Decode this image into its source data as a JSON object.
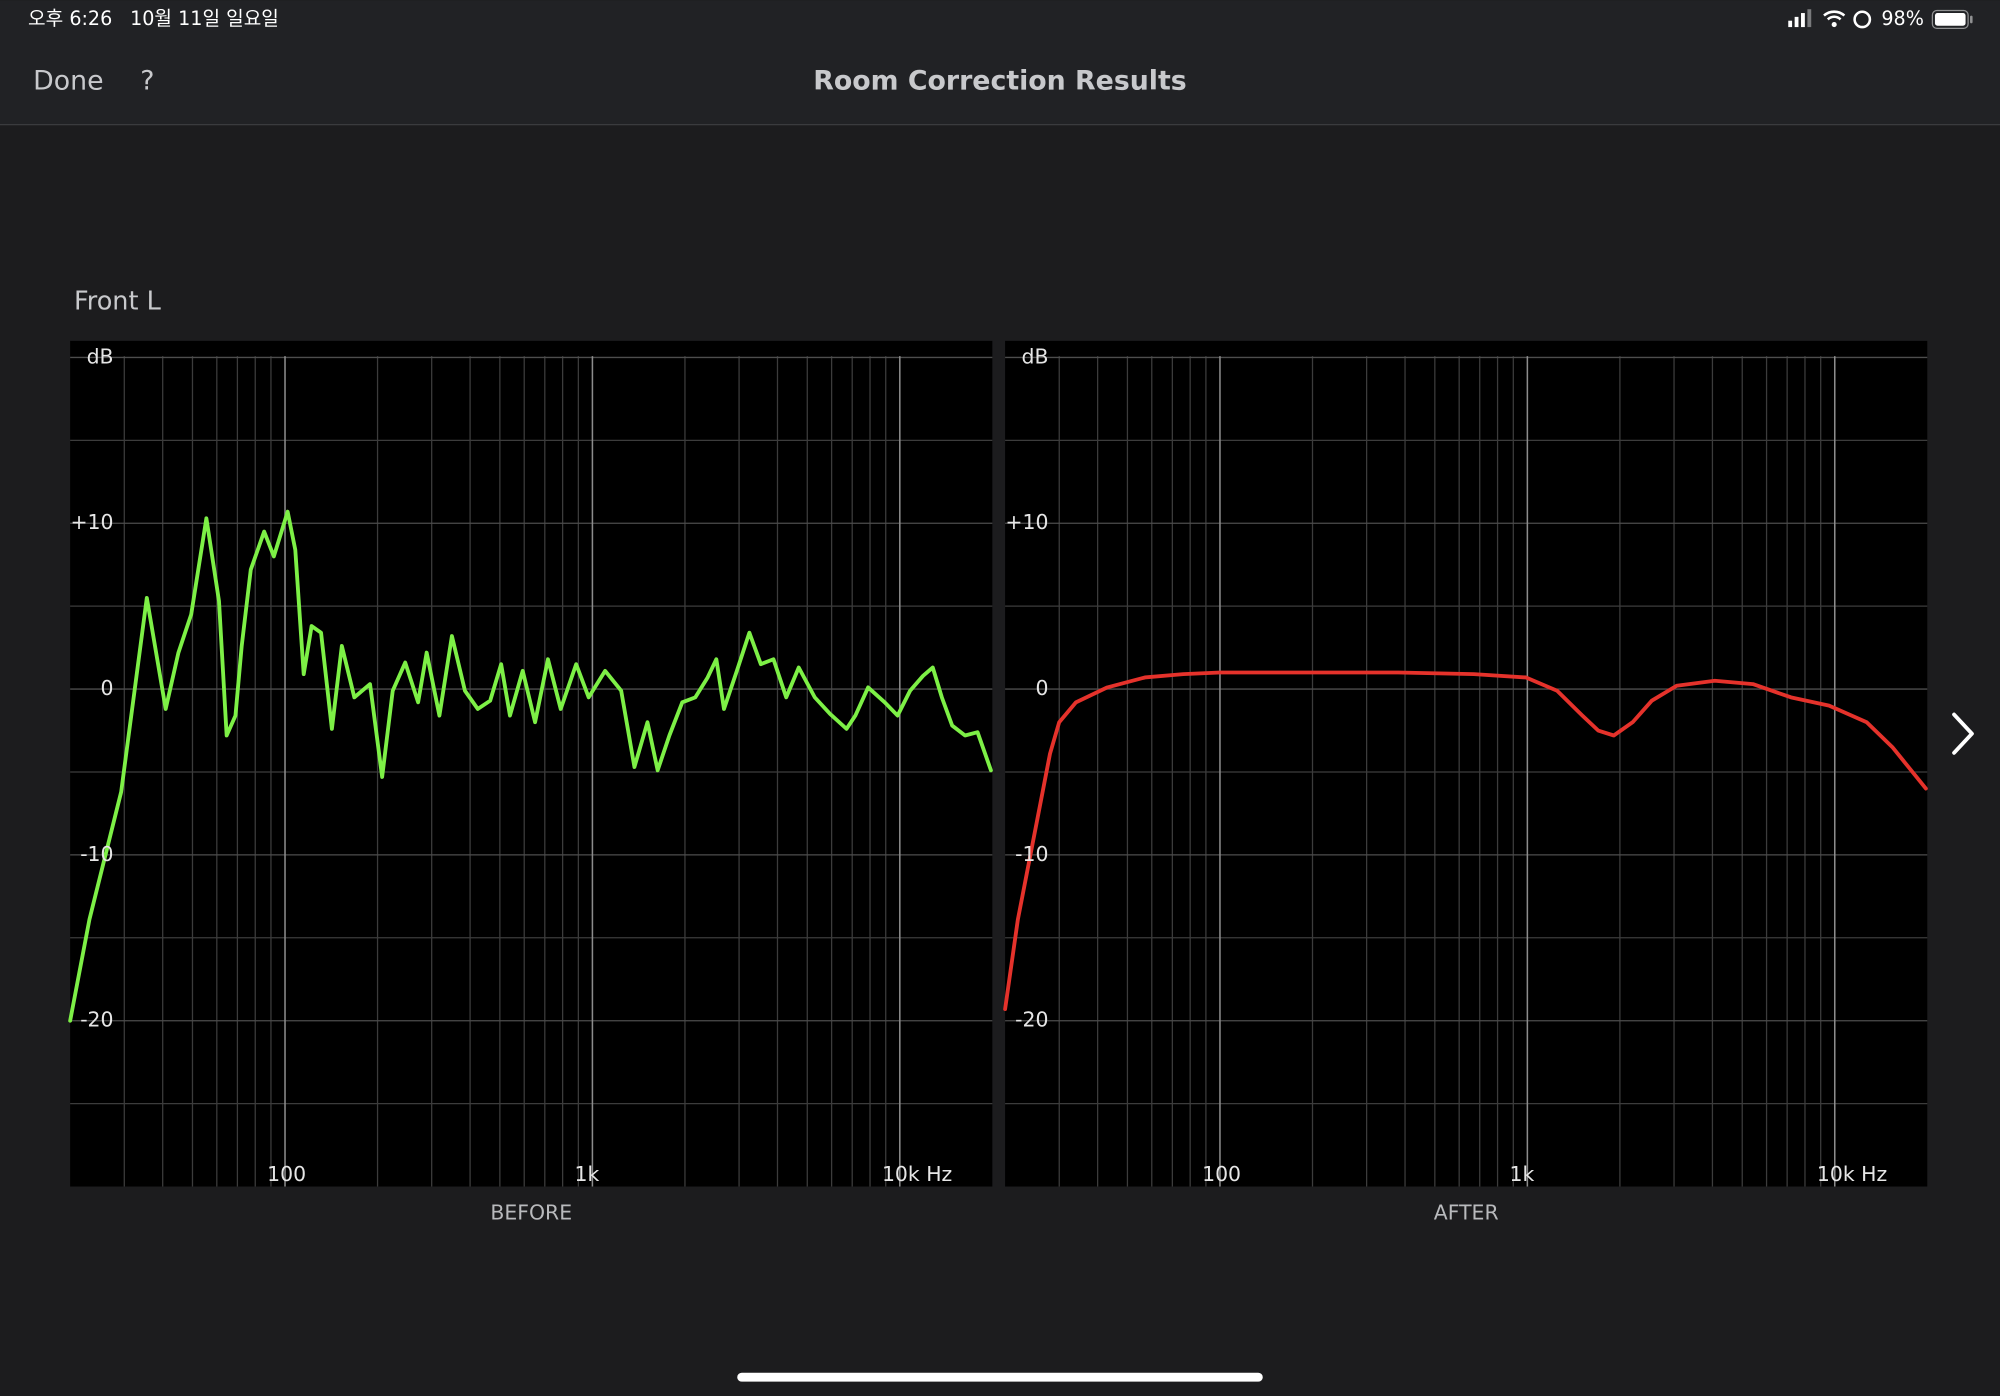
{
  "status_bar": {
    "time": "오후 6:26",
    "date": "10월 11일 일요일",
    "battery": "98%"
  },
  "nav": {
    "done": "Done",
    "help": "?",
    "title": "Room Correction Results"
  },
  "channel": "Front L",
  "chart_data": [
    {
      "type": "line",
      "caption": "BEFORE",
      "color": "#7df046",
      "log_x": true,
      "xlim": [
        20,
        20000
      ],
      "ylim": [
        -30,
        21
      ],
      "xticks": [
        100,
        {
          "value": 1000,
          "label": "1k"
        },
        {
          "value": 10000,
          "label": "10k Hz"
        }
      ],
      "minor_xticks": [
        30,
        40,
        50,
        60,
        70,
        80,
        90,
        200,
        300,
        400,
        500,
        600,
        700,
        800,
        900,
        2000,
        3000,
        4000,
        5000,
        6000,
        7000,
        8000,
        9000
      ],
      "yticks": [
        {
          "value": 20,
          "label": "dB"
        },
        {
          "value": 10,
          "label": "+10"
        },
        0,
        -10,
        -20
      ],
      "minor_yticks": [
        15,
        5,
        -5,
        -15,
        -25
      ],
      "x": [
        20,
        23.1,
        29.3,
        32.2,
        35.5,
        40.9,
        45,
        49.5,
        55.5,
        61,
        64.6,
        69,
        72.3,
        77.4,
        85.5,
        92,
        102,
        108,
        115,
        122,
        131,
        142,
        153,
        168,
        189,
        207,
        224,
        246,
        271,
        289,
        318,
        349,
        385,
        424,
        465,
        505,
        539,
        593,
        651,
        717,
        789,
        885,
        972,
        1100,
        1240,
        1370,
        1510,
        1630,
        1780,
        1960,
        2160,
        2370,
        2530,
        2680,
        2950,
        3240,
        3530,
        3880,
        4270,
        4690,
        5290,
        5930,
        6710,
        7170,
        7890,
        8930,
        9830,
        10800,
        11900,
        12800,
        13700,
        14800,
        16300,
        17900,
        19800
      ],
      "values": [
        -20,
        -13.9,
        -6.2,
        -0.5,
        5.5,
        -1.2,
        2.2,
        4.5,
        10.3,
        5.3,
        -2.8,
        -1.6,
        2.6,
        7.2,
        9.5,
        8,
        10.7,
        8.4,
        0.9,
        3.8,
        3.4,
        -2.4,
        2.6,
        -0.5,
        0.3,
        -5.3,
        -0.1,
        1.6,
        -0.8,
        2.2,
        -1.6,
        3.2,
        -0.1,
        -1.2,
        -0.7,
        1.5,
        -1.6,
        1.1,
        -2,
        1.8,
        -1.2,
        1.5,
        -0.5,
        1.1,
        -0.1,
        -4.7,
        -2,
        -4.9,
        -2.8,
        -0.8,
        -0.5,
        0.7,
        1.8,
        -1.2,
        1.1,
        3.4,
        1.5,
        1.8,
        -0.5,
        1.3,
        -0.5,
        -1.5,
        -2.4,
        -1.6,
        0.1,
        -0.8,
        -1.6,
        -0.1,
        0.8,
        1.3,
        -0.5,
        -2.2,
        -2.8,
        -2.6,
        -4.9
      ]
    },
    {
      "type": "line",
      "caption": "AFTER",
      "color": "#e5322b",
      "log_x": true,
      "xlim": [
        20,
        20000
      ],
      "ylim": [
        -30,
        21
      ],
      "xticks": [
        100,
        {
          "value": 1000,
          "label": "1k"
        },
        {
          "value": 10000,
          "label": "10k Hz"
        }
      ],
      "minor_xticks": [
        30,
        40,
        50,
        60,
        70,
        80,
        90,
        200,
        300,
        400,
        500,
        600,
        700,
        800,
        900,
        2000,
        3000,
        4000,
        5000,
        6000,
        7000,
        8000,
        9000
      ],
      "yticks": [
        {
          "value": 20,
          "label": "dB"
        },
        {
          "value": 10,
          "label": "+10"
        },
        0,
        -10,
        -20
      ],
      "minor_yticks": [
        15,
        5,
        -5,
        -15,
        -25
      ],
      "x": [
        20,
        22,
        25.5,
        28,
        30,
        34,
        43,
        57,
        76,
        100,
        145,
        380,
        670,
        990,
        1250,
        1510,
        1700,
        1910,
        2200,
        2540,
        3060,
        4070,
        5420,
        7200,
        9580,
        12700,
        15400,
        19800
      ],
      "values": [
        -19.3,
        -13.9,
        -7.8,
        -3.9,
        -2,
        -0.8,
        0.1,
        0.7,
        0.9,
        1,
        1,
        1,
        0.9,
        0.7,
        -0.1,
        -1.6,
        -2.5,
        -2.8,
        -2,
        -0.7,
        0.2,
        0.5,
        0.3,
        -0.5,
        -1,
        -2,
        -3.5,
        -6
      ]
    }
  ]
}
